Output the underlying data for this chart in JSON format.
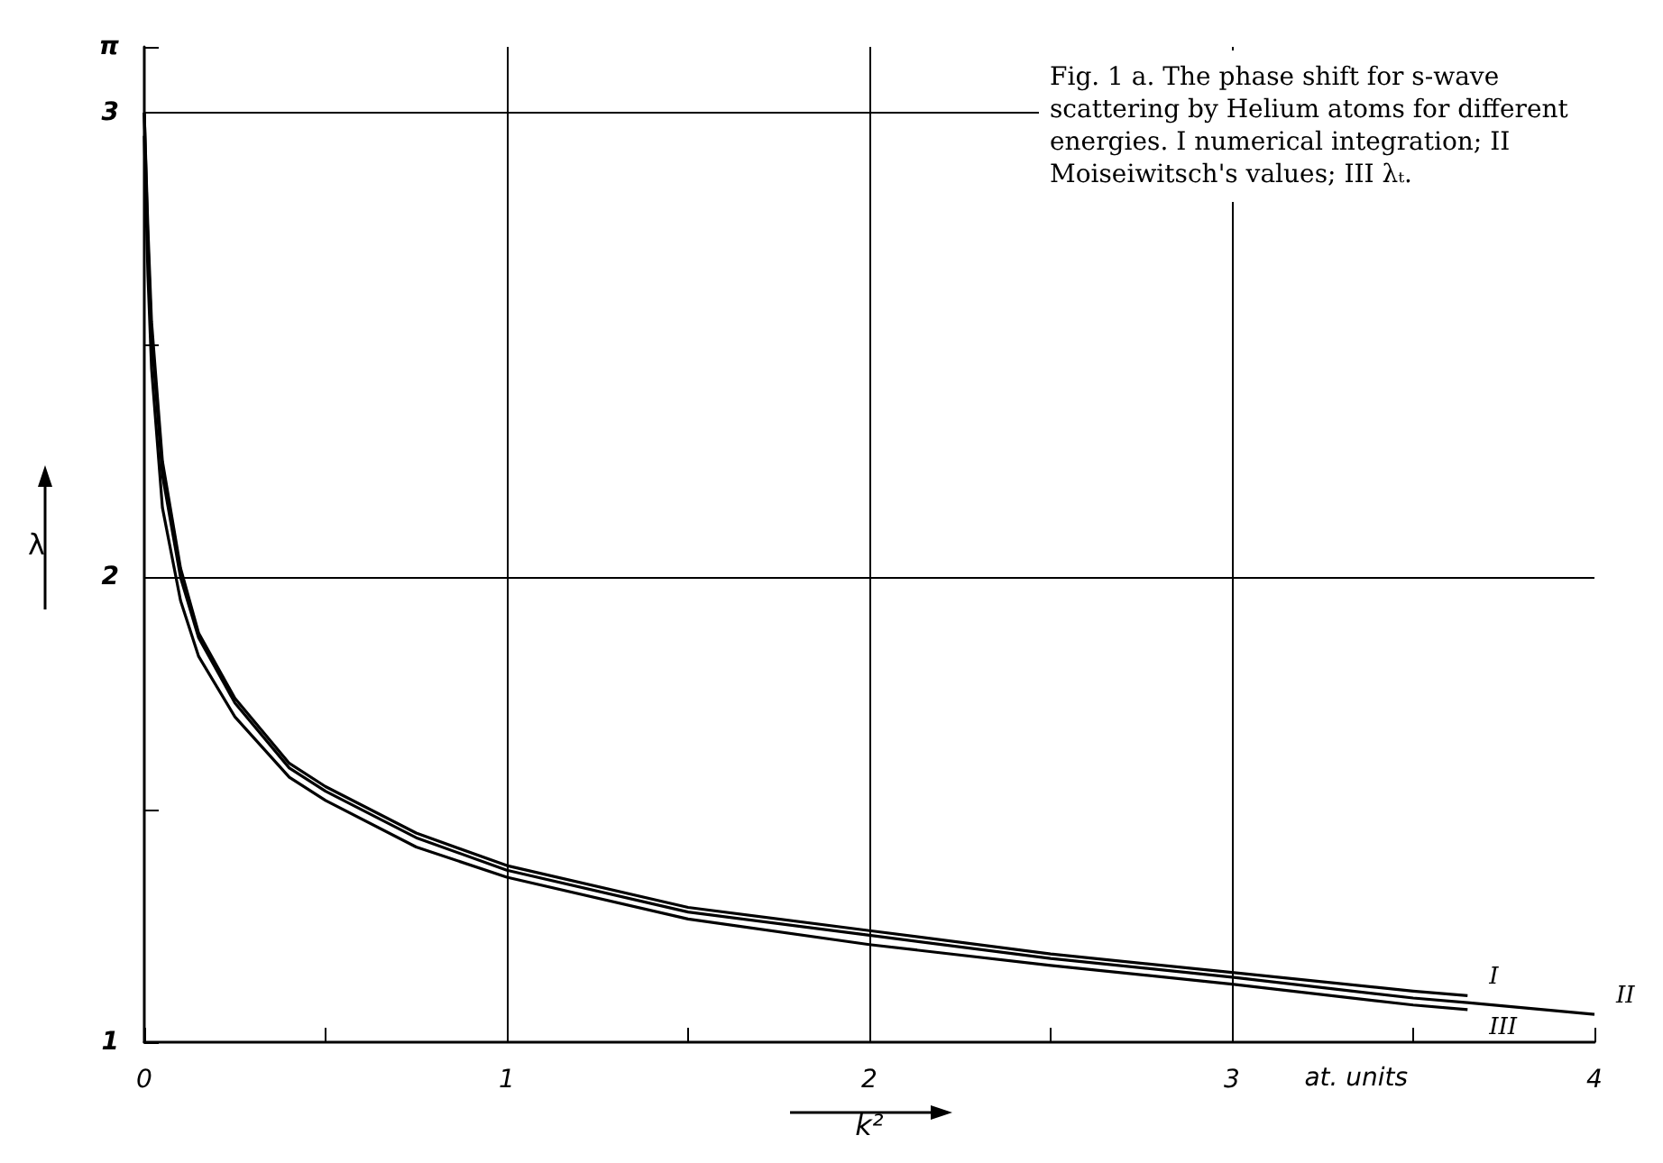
{
  "chart_data": {
    "type": "line",
    "title": "Fig. 1 a. The phase shift for s-wave scattering by Helium atoms for different energies. I numerical integration; II Moiseiwitsch's values; III λₜ.",
    "xlabel": "k²",
    "ylabel": "λ",
    "annotations": [
      "at. units"
    ],
    "xlim": [
      0,
      4
    ],
    "xticks": [
      0,
      {
        "value": 0.5,
        "label": null
      },
      1,
      {
        "value": 1.5,
        "label": null
      },
      2,
      {
        "value": 2.5,
        "label": null
      },
      3,
      {
        "value": 3.5,
        "label": null
      },
      4
    ],
    "ylim": [
      1,
      3.14159
    ],
    "yticks": [
      1,
      {
        "value": 1.5,
        "label": null
      },
      2,
      {
        "value": 2.5,
        "label": null
      },
      3,
      {
        "value": 3.14159,
        "label": "π"
      }
    ],
    "grid": true,
    "legend": false,
    "marker": "none",
    "line_style": "solid",
    "series": [
      {
        "name": "I",
        "color": "#000000",
        "x": [
          0,
          0.01,
          0.02,
          0.05,
          0.1,
          0.15,
          0.25,
          0.4,
          0.5,
          0.75,
          1,
          1.5,
          2,
          2.5,
          3,
          3.5,
          3.65
        ],
        "values": [
          3.0,
          2.75,
          2.55,
          2.25,
          2.02,
          1.88,
          1.74,
          1.6,
          1.55,
          1.45,
          1.38,
          1.29,
          1.24,
          1.19,
          1.15,
          1.11,
          1.1
        ]
      },
      {
        "name": "II",
        "color": "#000000",
        "x": [
          0,
          0.01,
          0.02,
          0.05,
          0.1,
          0.15,
          0.25,
          0.4,
          0.5,
          0.75,
          1,
          1.5,
          2,
          2.5,
          3,
          3.5,
          3.65,
          4
        ],
        "values": [
          3.0,
          2.72,
          2.52,
          2.22,
          2.0,
          1.87,
          1.73,
          1.59,
          1.54,
          1.44,
          1.37,
          1.28,
          1.23,
          1.18,
          1.14,
          1.095,
          1.085,
          1.06
        ]
      },
      {
        "name": "III",
        "color": "#000000",
        "x": [
          0,
          0.01,
          0.02,
          0.05,
          0.1,
          0.15,
          0.25,
          0.4,
          0.5,
          0.75,
          1,
          1.5,
          2,
          2.5,
          3,
          3.5,
          3.65
        ],
        "values": [
          2.95,
          2.65,
          2.45,
          2.15,
          1.95,
          1.83,
          1.7,
          1.57,
          1.52,
          1.42,
          1.355,
          1.265,
          1.21,
          1.165,
          1.125,
          1.08,
          1.07
        ]
      }
    ]
  }
}
